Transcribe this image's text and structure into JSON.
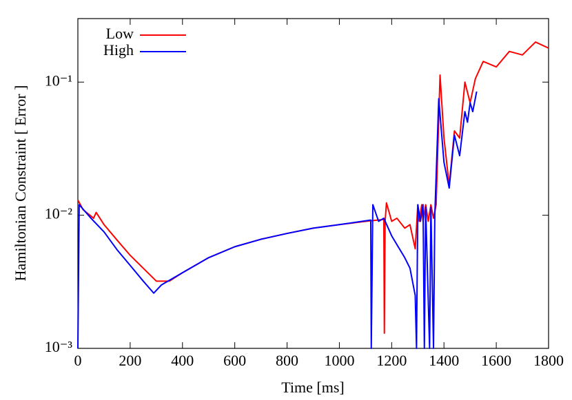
{
  "chart_data": {
    "type": "line",
    "xlabel": "Time [ms]",
    "ylabel": "Hamiltonian Constraint  [ Error ]",
    "log_y": true,
    "legend": "top-left",
    "xlim": [
      0,
      1800
    ],
    "xticks": [
      0,
      200,
      400,
      600,
      800,
      1000,
      1200,
      1400,
      1600,
      1800
    ],
    "ylim": [
      0.001,
      0.3
    ],
    "yticks": [
      {
        "value": 0.001,
        "label": "10⁻³"
      },
      {
        "value": 0.01,
        "label": "10⁻²"
      },
      {
        "value": 0.1,
        "label": "10⁻¹"
      }
    ],
    "series": [
      {
        "name": "Low",
        "color": "#ff0000",
        "x": [
          0,
          20,
          60,
          70,
          100,
          150,
          200,
          250,
          300,
          350,
          400,
          500,
          600,
          700,
          800,
          900,
          1000,
          1100,
          1170,
          1172,
          1175,
          1180,
          1200,
          1220,
          1250,
          1270,
          1290,
          1300,
          1305,
          1315,
          1320,
          1330,
          1340,
          1350,
          1360,
          1370,
          1385,
          1400,
          1420,
          1440,
          1460,
          1480,
          1500,
          1520,
          1550,
          1600,
          1650,
          1700,
          1750,
          1800
        ],
        "values": [
          0.013,
          0.011,
          0.0095,
          0.0105,
          0.0085,
          0.0065,
          0.005,
          0.004,
          0.0032,
          0.0032,
          0.0037,
          0.0048,
          0.0058,
          0.0066,
          0.0073,
          0.008,
          0.0085,
          0.009,
          0.0093,
          0.0013,
          0.009,
          0.0124,
          0.009,
          0.0095,
          0.008,
          0.0085,
          0.0056,
          0.012,
          0.009,
          0.012,
          0.009,
          0.012,
          0.009,
          0.012,
          0.0095,
          0.012,
          0.113,
          0.038,
          0.0167,
          0.043,
          0.038,
          0.1,
          0.07,
          0.106,
          0.143,
          0.13,
          0.17,
          0.16,
          0.2,
          0.18
        ]
      },
      {
        "name": "High",
        "color": "#0000ff",
        "x": [
          0,
          5,
          50,
          100,
          150,
          200,
          250,
          290,
          320,
          400,
          500,
          600,
          700,
          800,
          900,
          1000,
          1120,
          1122,
          1128,
          1150,
          1170,
          1200,
          1250,
          1270,
          1290,
          1295,
          1300,
          1310,
          1320,
          1325,
          1330,
          1345,
          1350,
          1360,
          1365,
          1380,
          1400,
          1420,
          1440,
          1460,
          1480,
          1490,
          1500,
          1510,
          1525
        ],
        "values": [
          0.001,
          0.012,
          0.0095,
          0.0075,
          0.0055,
          0.0042,
          0.0032,
          0.0026,
          0.003,
          0.0037,
          0.0048,
          0.0058,
          0.0066,
          0.0073,
          0.008,
          0.0085,
          0.0092,
          0.001,
          0.012,
          0.009,
          0.0095,
          0.007,
          0.0048,
          0.004,
          0.0025,
          0.001,
          0.012,
          0.009,
          0.012,
          0.001,
          0.0115,
          0.001,
          0.0115,
          0.001,
          0.01,
          0.075,
          0.025,
          0.016,
          0.04,
          0.028,
          0.06,
          0.05,
          0.07,
          0.06,
          0.085
        ]
      }
    ]
  }
}
